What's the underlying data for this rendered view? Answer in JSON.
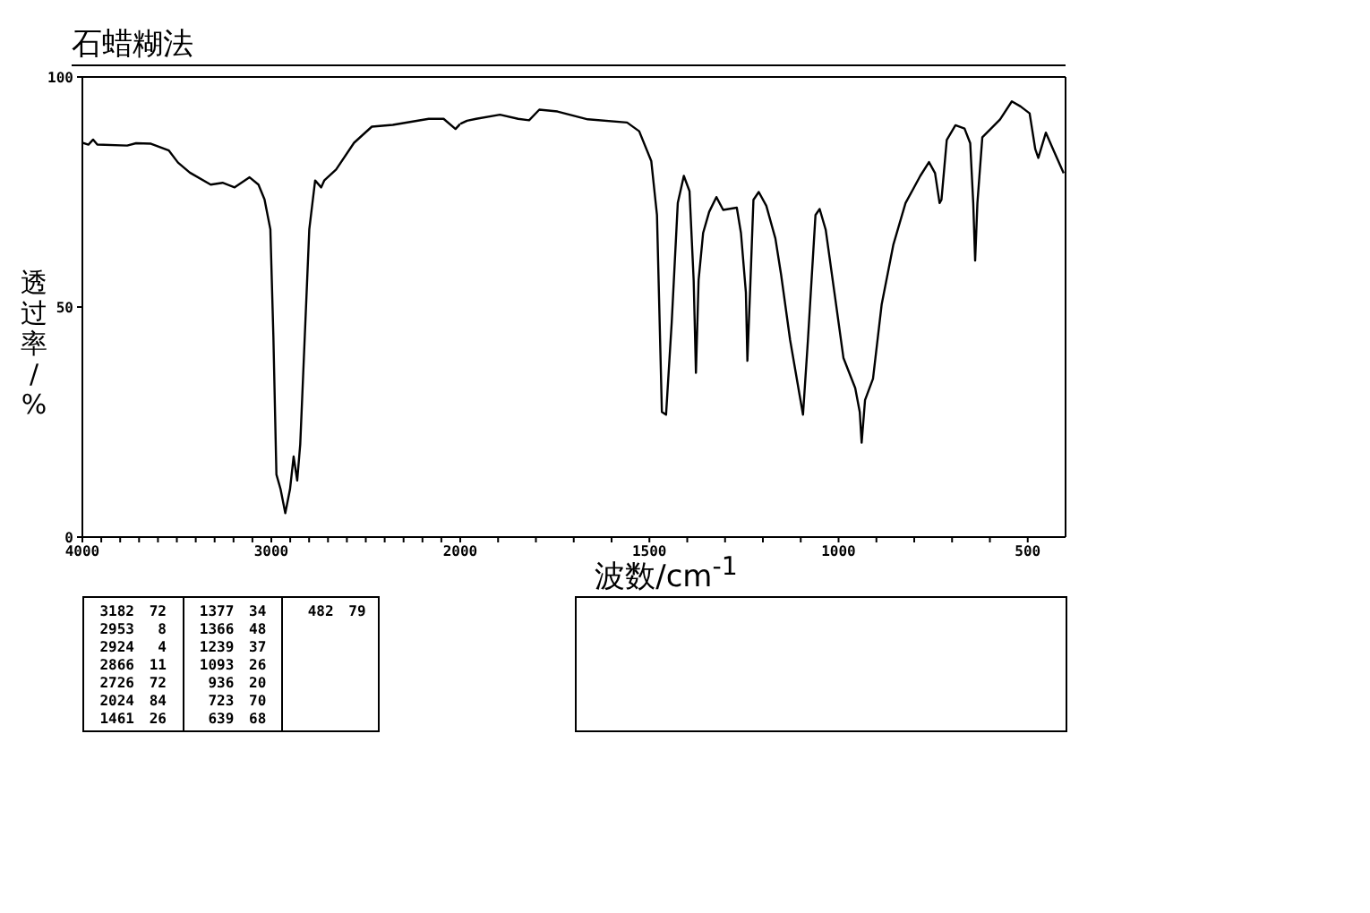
{
  "chart_data": [
    {
      "type": "line",
      "title": "石蜡糊法",
      "ylabel": "透过率/%",
      "x": [
        4000,
        3968,
        3943,
        3921,
        3763,
        3716,
        3637,
        3542,
        3494,
        3431,
        3321,
        3258,
        3194,
        3115,
        3068,
        3036,
        3005,
        2989,
        2973,
        2951,
        2926,
        2901,
        2882,
        2863,
        2847,
        2831,
        2799,
        2768,
        2736,
        2720,
        2657,
        2562,
        2468,
        2357,
        2167,
        2088,
        2025,
        2000
      ],
      "values": [
        85.7,
        85.3,
        86.4,
        85.3,
        85.1,
        85.6,
        85.5,
        84.0,
        81.4,
        79.2,
        76.6,
        77.0,
        76.0,
        78.2,
        76.6,
        73.4,
        66.9,
        43.5,
        13.6,
        10.4,
        5.2,
        10.4,
        17.5,
        12.3,
        20.1,
        35.7,
        66.9,
        77.5,
        76.0,
        77.5,
        79.9,
        85.7,
        89.2,
        89.6,
        90.9,
        90.9,
        88.7,
        89.8
      ],
      "color": "#000000",
      "marker": "none",
      "xlim": [
        4000,
        2000
      ],
      "xticks": [
        4000,
        {
          "value": 3900,
          "label": null
        },
        {
          "value": 3800,
          "label": null
        },
        {
          "value": 3700,
          "label": null
        },
        {
          "value": 3600,
          "label": null
        },
        {
          "value": 3500,
          "label": null
        },
        {
          "value": 3400,
          "label": null
        },
        {
          "value": 3300,
          "label": null
        },
        {
          "value": 3200,
          "label": null
        },
        {
          "value": 3100,
          "label": null
        },
        3000,
        {
          "value": 2900,
          "label": null
        },
        {
          "value": 2800,
          "label": null
        },
        {
          "value": 2700,
          "label": null
        },
        {
          "value": 2600,
          "label": null
        },
        {
          "value": 2500,
          "label": null
        },
        {
          "value": 2400,
          "label": null
        },
        {
          "value": 2300,
          "label": null
        },
        {
          "value": 2200,
          "label": null
        },
        {
          "value": 2100,
          "label": null
        },
        2000
      ],
      "ylim": [
        0,
        100
      ],
      "yticks": [
        0,
        50,
        100
      ],
      "annotations": [
        "3182 72",
        "2953 8",
        "2924 4",
        "2866 11",
        "2726 72",
        "2024 84",
        "1461 26",
        "1377 34",
        "1366 48",
        "1239 37",
        "1093 26",
        "936 20",
        "723 70",
        "639 68",
        "482 79"
      ]
    },
    {
      "type": "line",
      "xlabel": "波数/cm$^{-1}$",
      "tick_labels": "x",
      "x": [
        2000,
        1982,
        1958,
        1895,
        1847,
        1818,
        1791,
        1743,
        1663,
        1559,
        1527,
        1495,
        1480,
        1467,
        1456,
        1441,
        1425,
        1409,
        1394,
        1383,
        1377,
        1370,
        1358,
        1342,
        1323,
        1305,
        1269,
        1258,
        1245,
        1241,
        1234,
        1225,
        1211,
        1191,
        1167,
        1152,
        1128,
        1105,
        1094,
        1081,
        1061,
        1050,
        1034,
        1011,
        987,
        956,
        944,
        939,
        930,
        909,
        886,
        855,
        823,
        784,
        761,
        745,
        733,
        728,
        714,
        691,
        667,
        652,
        644,
        639,
        633,
        620,
        597,
        573,
        542,
        519,
        495,
        480,
        472,
        452,
        433,
        405
      ],
      "values": [
        89.8,
        90.5,
        90.9,
        91.8,
        90.9,
        90.6,
        92.9,
        92.5,
        90.8,
        90.1,
        88.2,
        81.7,
        70.0,
        27.2,
        26.6,
        46.7,
        72.6,
        78.5,
        75.2,
        55.8,
        35.7,
        55.8,
        66.1,
        70.7,
        73.9,
        71.1,
        71.6,
        66.1,
        53.2,
        38.3,
        53.2,
        73.3,
        75.0,
        72.0,
        64.9,
        57.1,
        42.8,
        31.8,
        26.6,
        42.8,
        70.0,
        71.3,
        66.8,
        53.2,
        38.9,
        32.4,
        27.2,
        20.5,
        29.8,
        34.4,
        50.6,
        63.6,
        72.6,
        78.5,
        81.5,
        79.1,
        72.6,
        73.3,
        86.3,
        89.5,
        88.8,
        85.6,
        72.6,
        60.1,
        72.6,
        86.9,
        88.8,
        90.8,
        94.7,
        93.6,
        92.1,
        84.3,
        82.4,
        87.9,
        84.3,
        79.1
      ],
      "color": "#000000",
      "marker": "none",
      "xlim": [
        2000,
        400
      ],
      "xticks": [
        {
          "value": 1900,
          "label": null
        },
        {
          "value": 1800,
          "label": null
        },
        {
          "value": 1700,
          "label": null
        },
        {
          "value": 1600,
          "label": null
        },
        1500,
        {
          "value": 1400,
          "label": null
        },
        {
          "value": 1300,
          "label": null
        },
        {
          "value": 1200,
          "label": null
        },
        {
          "value": 1100,
          "label": null
        },
        1000,
        {
          "value": 900,
          "label": null
        },
        {
          "value": 800,
          "label": null
        },
        {
          "value": 700,
          "label": null
        },
        {
          "value": 600,
          "label": null
        },
        500
      ],
      "ylim": [
        0,
        100
      ],
      "yticks": [
        0,
        50,
        100
      ]
    }
  ]
}
